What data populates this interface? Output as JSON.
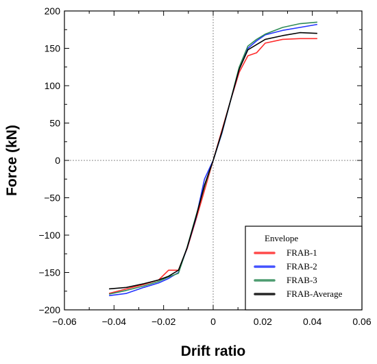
{
  "chart_data": {
    "type": "line",
    "title": "",
    "xlabel": "Drift ratio",
    "ylabel": "Force (kN)",
    "xlim": [
      -0.06,
      0.06
    ],
    "ylim": [
      -200,
      200
    ],
    "xticks": [
      -0.06,
      -0.04,
      -0.02,
      0,
      0.02,
      0.04,
      0.06
    ],
    "xtick_labels": [
      "−0.06",
      "−0.04",
      "−0.02",
      "0",
      "0.02",
      "0.04",
      "0.06"
    ],
    "yticks": [
      200,
      150,
      100,
      50,
      0,
      -50,
      -100,
      -150,
      -200
    ],
    "ytick_labels": [
      "200",
      "150",
      "100",
      "50",
      "0",
      "−50",
      "−100",
      "−150",
      "−200"
    ],
    "grid": false,
    "zero_lines": "dotted",
    "legend": {
      "title": "Envelope",
      "position": "bottom-right"
    },
    "series": [
      {
        "name": "FRAB-1",
        "color": "#ff2a2a",
        "x": [
          -0.042,
          -0.035,
          -0.028,
          -0.022,
          -0.018,
          -0.014,
          -0.0105,
          -0.007,
          -0.0035,
          0,
          0.0035,
          0.007,
          0.0105,
          0.014,
          0.0175,
          0.021,
          0.028,
          0.035,
          0.042
        ],
        "y": [
          -178,
          -172,
          -166,
          -160,
          -147,
          -147,
          -118,
          -80,
          -40,
          0,
          40,
          80,
          118,
          140,
          144,
          157,
          162,
          163,
          163
        ]
      },
      {
        "name": "FRAB-2",
        "color": "#2233ff",
        "x": [
          -0.042,
          -0.035,
          -0.028,
          -0.022,
          -0.018,
          -0.014,
          -0.0105,
          -0.007,
          -0.0035,
          0,
          0.0035,
          0.007,
          0.0105,
          0.014,
          0.0175,
          0.021,
          0.028,
          0.035,
          0.042
        ],
        "y": [
          -181,
          -178,
          -170,
          -164,
          -158,
          -150,
          -117,
          -78,
          -25,
          0,
          36,
          80,
          122,
          150,
          160,
          168,
          174,
          178,
          182
        ]
      },
      {
        "name": "FRAB-3",
        "color": "#2e8b57",
        "x": [
          -0.042,
          -0.035,
          -0.028,
          -0.022,
          -0.018,
          -0.014,
          -0.0105,
          -0.007,
          -0.0035,
          0,
          0.0035,
          0.007,
          0.0105,
          0.014,
          0.0175,
          0.021,
          0.028,
          0.035,
          0.042
        ],
        "y": [
          -179,
          -174,
          -168,
          -162,
          -156,
          -151,
          -116,
          -75,
          -35,
          0,
          37,
          80,
          125,
          153,
          162,
          169,
          178,
          183,
          185
        ]
      },
      {
        "name": "FRAB-Average",
        "color": "#000000",
        "x": [
          -0.042,
          -0.035,
          -0.028,
          -0.022,
          -0.018,
          -0.014,
          -0.0105,
          -0.007,
          -0.0035,
          0,
          0.0035,
          0.007,
          0.0105,
          0.014,
          0.0175,
          0.021,
          0.028,
          0.035,
          0.042
        ],
        "y": [
          -172,
          -170,
          -165,
          -160,
          -155,
          -147,
          -117,
          -77,
          -33,
          0,
          38,
          80,
          122,
          148,
          155,
          162,
          167,
          171,
          170
        ]
      }
    ]
  }
}
